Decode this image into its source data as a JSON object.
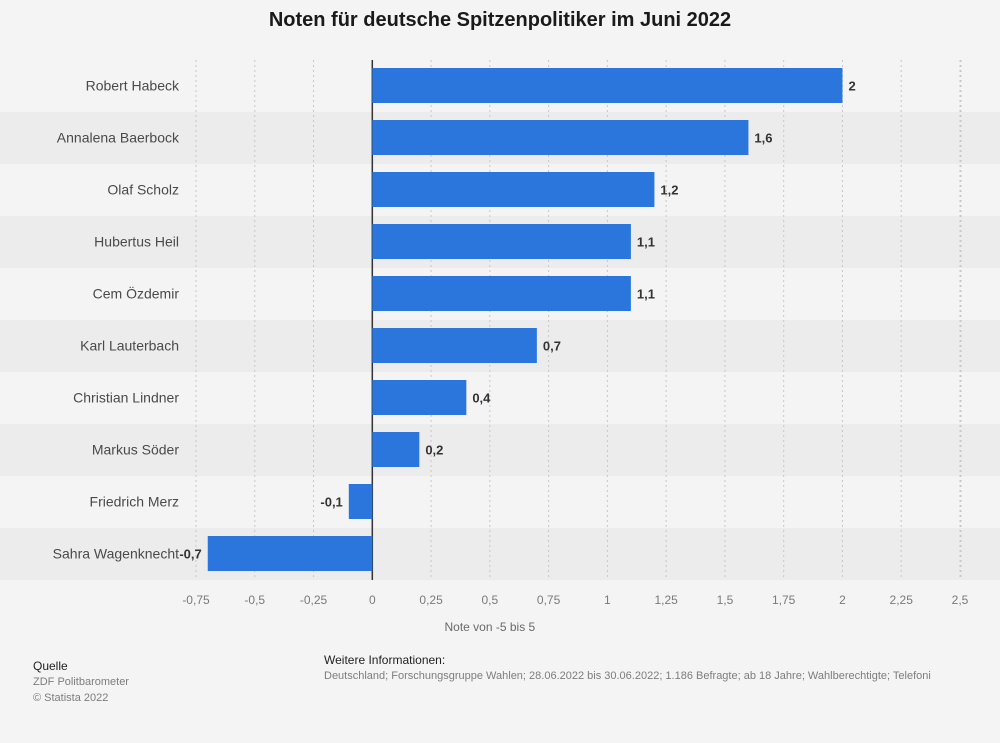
{
  "title": "Noten für deutsche Spitzenpolitiker im Juni 2022",
  "source": {
    "heading": "Quelle",
    "line1": "ZDF Politbarometer",
    "line2": "© Statista 2022"
  },
  "info": {
    "heading": "Weitere Informationen:",
    "text": "Deutschland; Forschungsgruppe Wahlen; 28.06.2022 bis 30.06.2022; 1.186 Befragte; ab 18 Jahre; Wahlberechtigte; Telefoni"
  },
  "colors": {
    "bar": "#2a76dd",
    "stripe": "#ececec"
  },
  "chart_data": {
    "type": "bar",
    "orientation": "horizontal",
    "title": "Noten für deutsche Spitzenpolitiker im Juni 2022",
    "xlabel": "Note von -5 bis 5",
    "ylabel": "",
    "xlim": [
      -0.75,
      2.5
    ],
    "grid": true,
    "categories": [
      "Robert Habeck",
      "Annalena Baerbock",
      "Olaf Scholz",
      "Hubertus Heil",
      "Cem Özdemir",
      "Karl Lauterbach",
      "Christian Lindner",
      "Markus Söder",
      "Friedrich Merz",
      "Sahra Wagenknecht"
    ],
    "values": [
      2,
      1.6,
      1.2,
      1.1,
      1.1,
      0.7,
      0.4,
      0.2,
      -0.1,
      -0.7
    ],
    "value_labels": [
      "2",
      "1,6",
      "1,2",
      "1,1",
      "1,1",
      "0,7",
      "0,4",
      "0,2",
      "-0,1",
      "-0,7"
    ],
    "ticks": [
      -0.75,
      -0.5,
      -0.25,
      0,
      0.25,
      0.5,
      0.75,
      1,
      1.25,
      1.5,
      1.75,
      2,
      2.25,
      2.5
    ],
    "tick_labels": [
      "-0,75",
      "-0,5",
      "-0,25",
      "0",
      "0,25",
      "0,5",
      "0,75",
      "1",
      "1,25",
      "1,5",
      "1,75",
      "2",
      "2,25",
      "2,5"
    ]
  }
}
